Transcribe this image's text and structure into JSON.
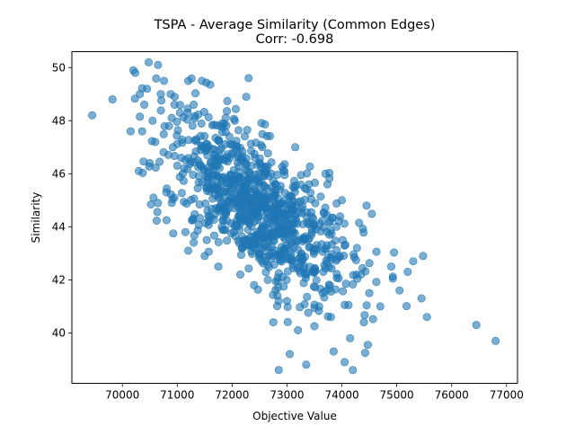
{
  "chart_data": {
    "type": "scatter",
    "title": "TSPA - Average Similarity (Common Edges)",
    "subtitle": "Corr: -0.698",
    "xlabel": "Objective Value",
    "ylabel": "Similarity",
    "xlim": [
      69080,
      77200
    ],
    "ylim": [
      38.1,
      50.6
    ],
    "xticks": [
      70000,
      71000,
      72000,
      73000,
      74000,
      75000,
      76000,
      77000
    ],
    "yticks": [
      40,
      42,
      44,
      46,
      48,
      50
    ],
    "grid": false,
    "legend": null,
    "colors": {
      "marker": "#1f77b4",
      "marker_alpha": 0.6
    },
    "series": [
      {
        "n_points": 1000,
        "points": [
          [
            69450,
            48.2
          ],
          [
            69820,
            48.8
          ],
          [
            70150,
            47.6
          ],
          [
            70200,
            49.9
          ],
          [
            70300,
            46.1
          ],
          [
            70320,
            49.0
          ],
          [
            70360,
            47.6
          ],
          [
            70400,
            48.6
          ],
          [
            70450,
            49.2
          ],
          [
            70480,
            50.2
          ],
          [
            70500,
            46.4
          ],
          [
            70550,
            48.0
          ],
          [
            70600,
            47.2
          ],
          [
            70650,
            50.1
          ],
          [
            70700,
            49.0
          ],
          [
            70650,
            44.9
          ],
          [
            70760,
            49.5
          ],
          [
            70800,
            45.3
          ],
          [
            70850,
            47.8
          ],
          [
            70880,
            49.0
          ],
          [
            70900,
            44.9
          ],
          [
            70920,
            47.0
          ],
          [
            70950,
            48.6
          ],
          [
            71000,
            46.3
          ],
          [
            71050,
            48.3
          ],
          [
            71100,
            46.0
          ],
          [
            71150,
            43.8
          ],
          [
            71200,
            49.5
          ],
          [
            71200,
            43.1
          ],
          [
            71300,
            48.6
          ],
          [
            71300,
            43.4
          ],
          [
            71350,
            47.3
          ],
          [
            71450,
            49.5
          ],
          [
            71500,
            42.9
          ],
          [
            71550,
            44.6
          ],
          [
            71700,
            46.7
          ],
          [
            71750,
            42.5
          ],
          [
            71850,
            44.4
          ],
          [
            71950,
            47.4
          ],
          [
            72050,
            48.0
          ],
          [
            72150,
            42.2
          ],
          [
            72250,
            43.3
          ],
          [
            72300,
            49.6
          ],
          [
            72350,
            46.3
          ],
          [
            72400,
            41.8
          ],
          [
            72450,
            44.5
          ],
          [
            72550,
            47.0
          ],
          [
            72650,
            42.0
          ],
          [
            72750,
            40.4
          ],
          [
            72850,
            38.6
          ],
          [
            72900,
            43.1
          ],
          [
            73000,
            41.2
          ],
          [
            73050,
            39.2
          ],
          [
            73100,
            44.6
          ],
          [
            73150,
            47.0
          ],
          [
            73200,
            40.1
          ],
          [
            73350,
            38.8
          ],
          [
            73400,
            45.6
          ],
          [
            73500,
            42.3
          ],
          [
            73650,
            41.5
          ],
          [
            73700,
            46.0
          ],
          [
            73800,
            40.6
          ],
          [
            73850,
            39.3
          ],
          [
            73950,
            42.9
          ],
          [
            74000,
            45.0
          ],
          [
            74050,
            38.9
          ],
          [
            74150,
            39.8
          ],
          [
            74200,
            38.6
          ],
          [
            74350,
            42.2
          ],
          [
            74400,
            40.4
          ],
          [
            74450,
            44.8
          ],
          [
            74500,
            41.5
          ],
          [
            74700,
            41.0
          ],
          [
            74900,
            42.5
          ],
          [
            75050,
            41.6
          ],
          [
            75200,
            42.3
          ],
          [
            75300,
            42.7
          ],
          [
            75450,
            41.3
          ],
          [
            75480,
            42.9
          ],
          [
            75550,
            40.6
          ],
          [
            76450,
            40.3
          ],
          [
            76800,
            39.7
          ]
        ]
      }
    ]
  }
}
